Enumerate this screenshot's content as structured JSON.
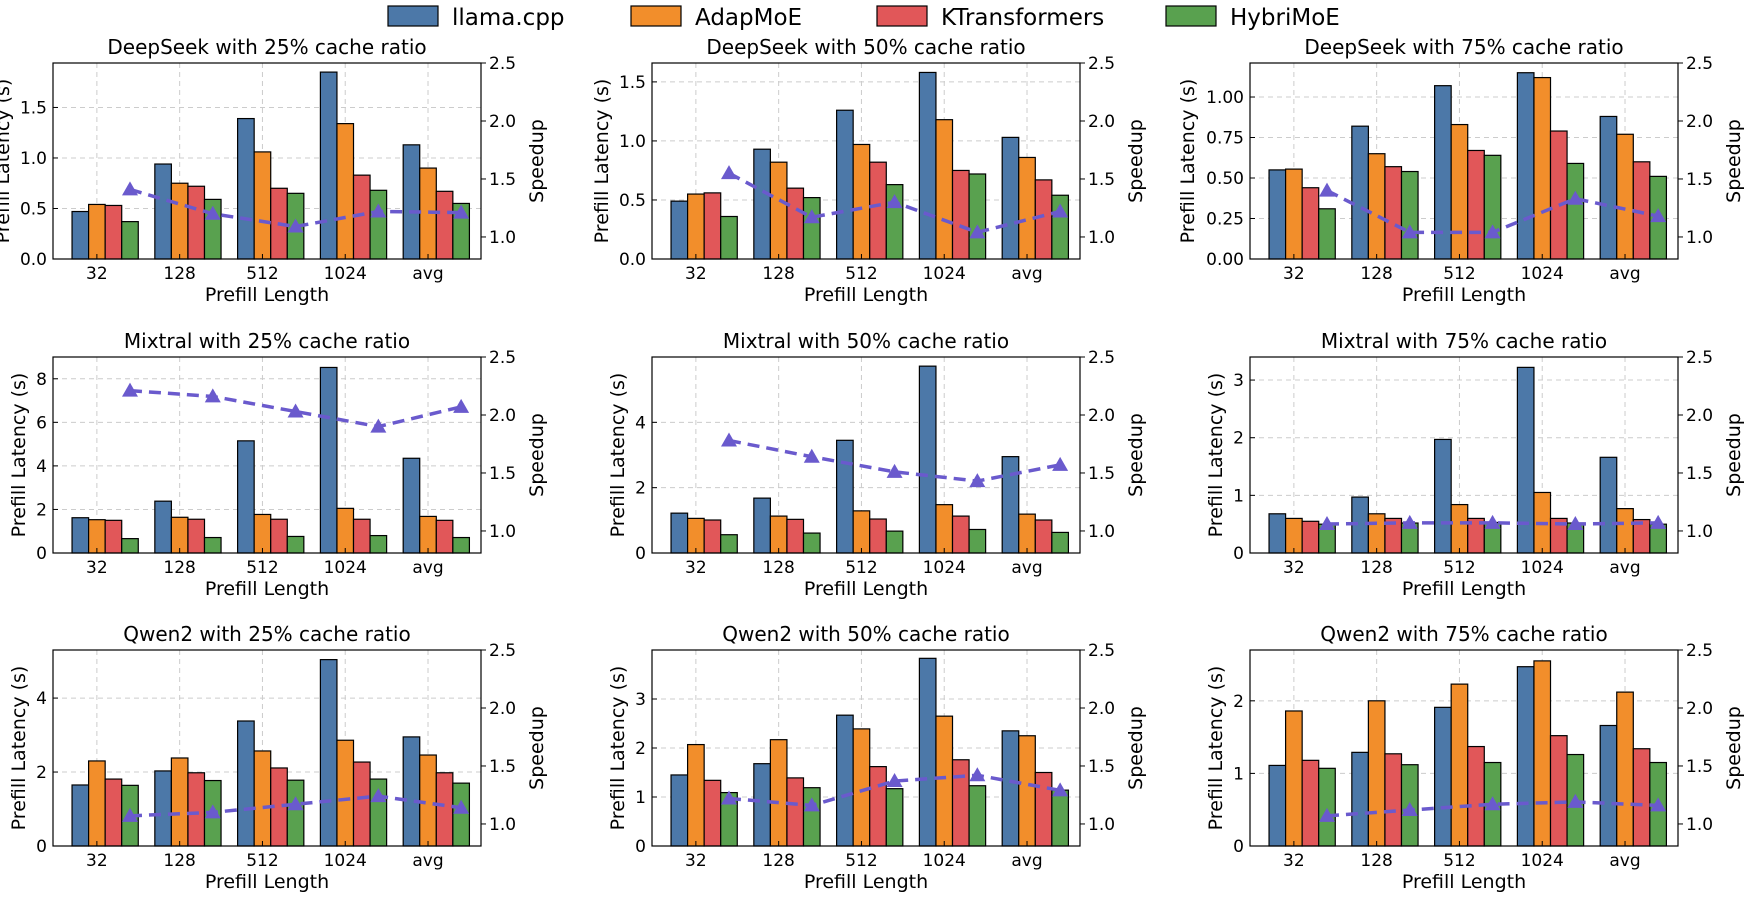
{
  "legend": {
    "placement": "top-center",
    "items": [
      {
        "name": "llama.cpp",
        "color": "#4c78a8"
      },
      {
        "name": "AdapMoE",
        "color": "#f28e2b"
      },
      {
        "name": "KTransformers",
        "color": "#e15759"
      },
      {
        "name": "HybriMoE",
        "color": "#59a14f"
      }
    ]
  },
  "speedup_line_color": "#6a5acd",
  "chart_data": [
    {
      "type": "bar",
      "title": "DeepSeek with 25% cache ratio",
      "xlabel": "Prefill Length",
      "ylabel": "Prefill Latency (s)",
      "y2label": "Speedup",
      "categories": [
        "32",
        "128",
        "512",
        "1024",
        "avg"
      ],
      "ylim": [
        0,
        1.94
      ],
      "yticks": [
        "0.0",
        "0.5",
        "1.0",
        "1.5"
      ],
      "y2lim": [
        0.81,
        2.5
      ],
      "y2ticks": [
        "1.0",
        "1.5",
        "2.0",
        "2.5"
      ],
      "grid": true,
      "series": [
        {
          "name": "llama.cpp",
          "values": [
            0.47,
            0.94,
            1.39,
            1.85,
            1.13
          ]
        },
        {
          "name": "AdapMoE",
          "values": [
            0.54,
            0.75,
            1.06,
            1.34,
            0.9
          ]
        },
        {
          "name": "KTransformers",
          "values": [
            0.53,
            0.72,
            0.7,
            0.83,
            0.67
          ]
        },
        {
          "name": "HybriMoE",
          "values": [
            0.37,
            0.59,
            0.65,
            0.68,
            0.55
          ]
        }
      ],
      "speedup": [
        1.41,
        1.2,
        1.09,
        1.22,
        1.21
      ]
    },
    {
      "type": "bar",
      "title": "DeepSeek with 50% cache ratio",
      "xlabel": "Prefill Length",
      "ylabel": "Prefill Latency (s)",
      "y2label": "Speedup",
      "categories": [
        "32",
        "128",
        "512",
        "1024",
        "avg"
      ],
      "ylim": [
        0,
        1.66
      ],
      "yticks": [
        "0.0",
        "0.5",
        "1.0",
        "1.5"
      ],
      "y2lim": [
        0.81,
        2.5
      ],
      "y2ticks": [
        "1.0",
        "1.5",
        "2.0",
        "2.5"
      ],
      "grid": true,
      "series": [
        {
          "name": "llama.cpp",
          "values": [
            0.49,
            0.93,
            1.26,
            1.58,
            1.03
          ]
        },
        {
          "name": "AdapMoE",
          "values": [
            0.55,
            0.82,
            0.97,
            1.18,
            0.86
          ]
        },
        {
          "name": "KTransformers",
          "values": [
            0.56,
            0.6,
            0.82,
            0.75,
            0.67
          ]
        },
        {
          "name": "HybriMoE",
          "values": [
            0.36,
            0.52,
            0.63,
            0.72,
            0.54
          ]
        }
      ],
      "speedup": [
        1.55,
        1.17,
        1.3,
        1.04,
        1.22
      ]
    },
    {
      "type": "bar",
      "title": "DeepSeek with 75% cache ratio",
      "xlabel": "Prefill Length",
      "ylabel": "Prefill Latency (s)",
      "y2label": "Speedup",
      "categories": [
        "32",
        "128",
        "512",
        "1024",
        "avg"
      ],
      "ylim": [
        0,
        1.21
      ],
      "yticks": [
        "0.00",
        "0.25",
        "0.50",
        "0.75",
        "1.00"
      ],
      "y2lim": [
        0.81,
        2.5
      ],
      "y2ticks": [
        "1.0",
        "1.5",
        "2.0",
        "2.5"
      ],
      "grid": true,
      "series": [
        {
          "name": "llama.cpp",
          "values": [
            0.55,
            0.82,
            1.07,
            1.15,
            0.88
          ]
        },
        {
          "name": "AdapMoE",
          "values": [
            0.555,
            0.65,
            0.83,
            1.12,
            0.77
          ]
        },
        {
          "name": "KTransformers",
          "values": [
            0.44,
            0.57,
            0.67,
            0.79,
            0.6
          ]
        },
        {
          "name": "HybriMoE",
          "values": [
            0.31,
            0.54,
            0.64,
            0.59,
            0.51
          ]
        }
      ],
      "speedup": [
        1.4,
        1.04,
        1.04,
        1.33,
        1.18
      ]
    },
    {
      "type": "bar",
      "title": "Mixtral with 25% cache ratio",
      "xlabel": "Prefill Length",
      "ylabel": "Prefill Latency (s)",
      "y2label": "Speedup",
      "categories": [
        "32",
        "128",
        "512",
        "1024",
        "avg"
      ],
      "ylim": [
        0,
        9.0
      ],
      "yticks": [
        "0",
        "2",
        "4",
        "6",
        "8"
      ],
      "y2lim": [
        0.81,
        2.5
      ],
      "y2ticks": [
        "1.0",
        "1.5",
        "2.0",
        "2.5"
      ],
      "grid": true,
      "series": [
        {
          "name": "llama.cpp",
          "values": [
            1.62,
            2.38,
            5.15,
            8.52,
            4.35
          ]
        },
        {
          "name": "AdapMoE",
          "values": [
            1.53,
            1.64,
            1.77,
            2.05,
            1.68
          ]
        },
        {
          "name": "KTransformers",
          "values": [
            1.5,
            1.55,
            1.55,
            1.55,
            1.5
          ]
        },
        {
          "name": "HybriMoE",
          "values": [
            0.66,
            0.71,
            0.76,
            0.8,
            0.71
          ]
        }
      ],
      "speedup": [
        2.21,
        2.16,
        2.03,
        1.9,
        2.07
      ]
    },
    {
      "type": "bar",
      "title": "Mixtral with 50% cache ratio",
      "xlabel": "Prefill Length",
      "ylabel": "Prefill Latency (s)",
      "y2label": "Speedup",
      "categories": [
        "32",
        "128",
        "512",
        "1024",
        "avg"
      ],
      "ylim": [
        0,
        6.0
      ],
      "yticks": [
        "0",
        "2",
        "4"
      ],
      "y2lim": [
        0.81,
        2.5
      ],
      "y2ticks": [
        "1.0",
        "1.5",
        "2.0",
        "2.5"
      ],
      "grid": true,
      "series": [
        {
          "name": "llama.cpp",
          "values": [
            1.22,
            1.68,
            3.45,
            5.72,
            2.95
          ]
        },
        {
          "name": "AdapMoE",
          "values": [
            1.06,
            1.13,
            1.29,
            1.48,
            1.19
          ]
        },
        {
          "name": "KTransformers",
          "values": [
            1.01,
            1.03,
            1.04,
            1.13,
            1.01
          ]
        },
        {
          "name": "HybriMoE",
          "values": [
            0.56,
            0.61,
            0.67,
            0.72,
            0.63
          ]
        }
      ],
      "speedup": [
        1.78,
        1.64,
        1.51,
        1.43,
        1.57
      ]
    },
    {
      "type": "bar",
      "title": "Mixtral with 75% cache ratio",
      "xlabel": "Prefill Length",
      "ylabel": "Prefill Latency (s)",
      "y2label": "Speedup",
      "categories": [
        "32",
        "128",
        "512",
        "1024",
        "avg"
      ],
      "ylim": [
        0,
        3.4
      ],
      "yticks": [
        "0",
        "1",
        "2",
        "3"
      ],
      "y2lim": [
        0.81,
        2.5
      ],
      "y2ticks": [
        "1.0",
        "1.5",
        "2.0",
        "2.5"
      ],
      "grid": true,
      "series": [
        {
          "name": "llama.cpp",
          "values": [
            0.68,
            0.97,
            1.97,
            3.22,
            1.66
          ]
        },
        {
          "name": "AdapMoE",
          "values": [
            0.6,
            0.68,
            0.84,
            1.05,
            0.77
          ]
        },
        {
          "name": "KTransformers",
          "values": [
            0.55,
            0.6,
            0.6,
            0.6,
            0.58
          ]
        },
        {
          "name": "HybriMoE",
          "values": [
            0.5,
            0.52,
            0.53,
            0.52,
            0.5
          ]
        }
      ],
      "speedup": [
        1.06,
        1.07,
        1.07,
        1.06,
        1.07
      ]
    },
    {
      "type": "bar",
      "title": "Qwen2 with 25% cache ratio",
      "xlabel": "Prefill Length",
      "ylabel": "Prefill Latency (s)",
      "y2label": "Speedup",
      "categories": [
        "32",
        "128",
        "512",
        "1024",
        "avg"
      ],
      "ylim": [
        0,
        5.3
      ],
      "yticks": [
        "0",
        "2",
        "4"
      ],
      "y2lim": [
        0.81,
        2.5
      ],
      "y2ticks": [
        "1.0",
        "1.5",
        "2.0",
        "2.5"
      ],
      "grid": true,
      "series": [
        {
          "name": "llama.cpp",
          "values": [
            1.65,
            2.03,
            3.38,
            5.04,
            2.95
          ]
        },
        {
          "name": "AdapMoE",
          "values": [
            2.3,
            2.38,
            2.57,
            2.86,
            2.46
          ]
        },
        {
          "name": "KTransformers",
          "values": [
            1.81,
            1.98,
            2.11,
            2.27,
            1.98
          ]
        },
        {
          "name": "HybriMoE",
          "values": [
            1.64,
            1.77,
            1.78,
            1.81,
            1.7
          ]
        }
      ],
      "speedup": [
        1.07,
        1.1,
        1.17,
        1.24,
        1.14
      ]
    },
    {
      "type": "bar",
      "title": "Qwen2 with 50% cache ratio",
      "xlabel": "Prefill Length",
      "ylabel": "Prefill Latency (s)",
      "y2label": "Speedup",
      "categories": [
        "32",
        "128",
        "512",
        "1024",
        "avg"
      ],
      "ylim": [
        0,
        4.0
      ],
      "yticks": [
        "0",
        "1",
        "2",
        "3"
      ],
      "y2lim": [
        0.81,
        2.5
      ],
      "y2ticks": [
        "1.0",
        "1.5",
        "2.0",
        "2.5"
      ],
      "grid": true,
      "series": [
        {
          "name": "llama.cpp",
          "values": [
            1.45,
            1.68,
            2.67,
            3.83,
            2.35
          ]
        },
        {
          "name": "AdapMoE",
          "values": [
            2.07,
            2.17,
            2.39,
            2.65,
            2.25
          ]
        },
        {
          "name": "KTransformers",
          "values": [
            1.34,
            1.39,
            1.62,
            1.76,
            1.5
          ]
        },
        {
          "name": "HybriMoE",
          "values": [
            1.09,
            1.19,
            1.17,
            1.23,
            1.14
          ]
        }
      ],
      "speedup": [
        1.22,
        1.16,
        1.37,
        1.42,
        1.29
      ]
    },
    {
      "type": "bar",
      "title": "Qwen2 with 75% cache ratio",
      "xlabel": "Prefill Length",
      "ylabel": "Prefill Latency (s)",
      "y2label": "Speedup",
      "categories": [
        "32",
        "128",
        "512",
        "1024",
        "avg"
      ],
      "ylim": [
        0,
        2.7
      ],
      "yticks": [
        "0",
        "1",
        "2"
      ],
      "y2lim": [
        0.81,
        2.5
      ],
      "y2ticks": [
        "1.0",
        "1.5",
        "2.0",
        "2.5"
      ],
      "grid": true,
      "series": [
        {
          "name": "llama.cpp",
          "values": [
            1.11,
            1.29,
            1.91,
            2.47,
            1.66
          ]
        },
        {
          "name": "AdapMoE",
          "values": [
            1.86,
            2.0,
            2.23,
            2.55,
            2.12
          ]
        },
        {
          "name": "KTransformers",
          "values": [
            1.18,
            1.27,
            1.37,
            1.52,
            1.34
          ]
        },
        {
          "name": "HybriMoE",
          "values": [
            1.07,
            1.12,
            1.15,
            1.26,
            1.15
          ]
        }
      ],
      "speedup": [
        1.07,
        1.12,
        1.17,
        1.19,
        1.16
      ]
    }
  ]
}
